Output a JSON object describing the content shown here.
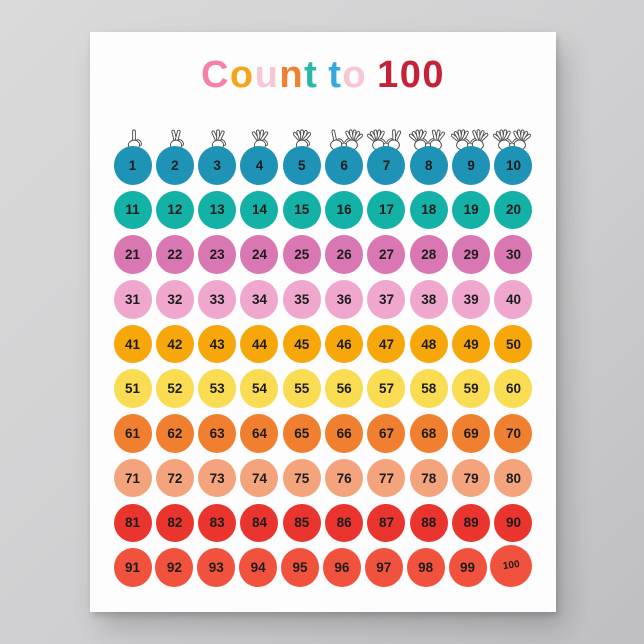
{
  "background": {
    "color_top_left": "#dadada",
    "color_bottom_right": "#bfbfc2"
  },
  "poster": {
    "paper_color": "#fdfdfd",
    "title": {
      "text": "Count to 100",
      "letters": [
        {
          "char": "C",
          "color": "#F480A8"
        },
        {
          "char": "o",
          "color": "#F4A51B"
        },
        {
          "char": "u",
          "color": "#F9C6D3"
        },
        {
          "char": "n",
          "color": "#F08030"
        },
        {
          "char": "t",
          "color": "#2CB5AB"
        },
        {
          "char": " "
        },
        {
          "char": "t",
          "color": "#35A8E0"
        },
        {
          "char": "o",
          "color": "#F9C6D3"
        },
        {
          "char": " "
        },
        {
          "char": "1",
          "color": "#C52238"
        },
        {
          "char": "0",
          "color": "#C52238"
        },
        {
          "char": "0",
          "color": "#C52238"
        }
      ]
    },
    "hand_gestures": [
      {
        "number": "1",
        "fingers": [
          1
        ]
      },
      {
        "number": "2",
        "fingers": [
          2
        ]
      },
      {
        "number": "3",
        "fingers": [
          3
        ]
      },
      {
        "number": "4",
        "fingers": [
          4
        ]
      },
      {
        "number": "5",
        "fingers": [
          5
        ]
      },
      {
        "number": "6",
        "fingers": [
          1,
          5
        ]
      },
      {
        "number": "7",
        "fingers": [
          5,
          2
        ]
      },
      {
        "number": "8",
        "fingers": [
          5,
          3
        ]
      },
      {
        "number": "9",
        "fingers": [
          5,
          4
        ]
      },
      {
        "number": "10",
        "fingers": [
          5,
          5
        ]
      }
    ],
    "hand_icon_stroke_color": "#4d4d4d",
    "number_text_color": "#1d1d1d",
    "grid_rows": [
      {
        "circle_color": "#1E93B5",
        "numbers": [
          "1",
          "2",
          "3",
          "4",
          "5",
          "6",
          "7",
          "8",
          "9",
          "10"
        ]
      },
      {
        "circle_color": "#14B1A6",
        "numbers": [
          "11",
          "12",
          "13",
          "14",
          "15",
          "16",
          "17",
          "18",
          "19",
          "20"
        ]
      },
      {
        "circle_color": "#D877B2",
        "numbers": [
          "21",
          "22",
          "23",
          "24",
          "25",
          "26",
          "27",
          "28",
          "29",
          "30"
        ]
      },
      {
        "circle_color": "#EFA7CE",
        "numbers": [
          "31",
          "32",
          "33",
          "34",
          "35",
          "36",
          "37",
          "38",
          "39",
          "40"
        ]
      },
      {
        "circle_color": "#F7A70A",
        "numbers": [
          "41",
          "42",
          "43",
          "44",
          "45",
          "46",
          "47",
          "48",
          "49",
          "50"
        ]
      },
      {
        "circle_color": "#F9DC51",
        "numbers": [
          "51",
          "52",
          "53",
          "54",
          "55",
          "56",
          "57",
          "58",
          "59",
          "60"
        ]
      },
      {
        "circle_color": "#F0802F",
        "numbers": [
          "61",
          "62",
          "63",
          "64",
          "65",
          "66",
          "67",
          "68",
          "69",
          "70"
        ]
      },
      {
        "circle_color": "#F3A47C",
        "numbers": [
          "71",
          "72",
          "73",
          "74",
          "75",
          "76",
          "77",
          "78",
          "79",
          "80"
        ]
      },
      {
        "circle_color": "#EA342E",
        "numbers": [
          "81",
          "82",
          "83",
          "84",
          "85",
          "86",
          "87",
          "88",
          "89",
          "90"
        ]
      },
      {
        "circle_color": "#F1523E",
        "numbers": [
          "91",
          "92",
          "93",
          "94",
          "95",
          "96",
          "97",
          "98",
          "99",
          "100"
        ]
      }
    ]
  }
}
